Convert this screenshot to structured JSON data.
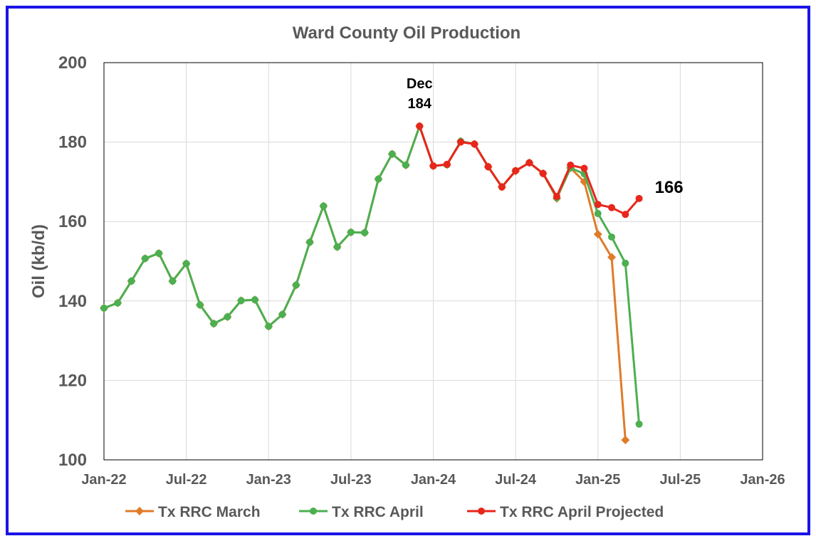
{
  "chart_data": {
    "type": "line",
    "title": "Ward County Oil Production",
    "xlabel": "",
    "ylabel": "Oil (kb/d)",
    "ylim": [
      100,
      200
    ],
    "yticks": [
      100,
      120,
      140,
      160,
      180,
      200
    ],
    "xlim": [
      "2022-01",
      "2026-01"
    ],
    "xticks": [
      "Jan-22",
      "Jul-22",
      "Jan-23",
      "Jul-23",
      "Jan-24",
      "Jul-24",
      "Jan-25",
      "Jul-25",
      "Jan-26"
    ],
    "grid": true,
    "legend_position": "bottom",
    "series": [
      {
        "name": "Tx RRC March",
        "color": "#e07b28",
        "marker": "diamond",
        "x": [
          "2022-01",
          "2022-02",
          "2022-03",
          "2022-04",
          "2022-05",
          "2022-06",
          "2022-07",
          "2022-08",
          "2022-09",
          "2022-10",
          "2022-11",
          "2022-12",
          "2023-01",
          "2023-02",
          "2023-03",
          "2023-04",
          "2023-05",
          "2023-06",
          "2023-07",
          "2023-08",
          "2023-09",
          "2023-10",
          "2023-11",
          "2023-12",
          "2024-01",
          "2024-02",
          "2024-03",
          "2024-04",
          "2024-05",
          "2024-06",
          "2024-07",
          "2024-08",
          "2024-09",
          "2024-10",
          "2024-11",
          "2024-12",
          "2025-01",
          "2025-02",
          "2025-03"
        ],
        "values": [
          138.2,
          139.5,
          145,
          150.7,
          152,
          145,
          149.4,
          139,
          134.3,
          136,
          140.1,
          140.3,
          133.6,
          136.6,
          144,
          154.8,
          163.9,
          153.6,
          157.3,
          157.2,
          170.7,
          177,
          174.2,
          184,
          174,
          174.3,
          180.2,
          179.5,
          173.8,
          168.7,
          172.7,
          174.8,
          172.1,
          165.8,
          173.5,
          170,
          156.8,
          151,
          105
        ]
      },
      {
        "name": "Tx RRC April",
        "color": "#4caf50",
        "marker": "circle",
        "x": [
          "2022-01",
          "2022-02",
          "2022-03",
          "2022-04",
          "2022-05",
          "2022-06",
          "2022-07",
          "2022-08",
          "2022-09",
          "2022-10",
          "2022-11",
          "2022-12",
          "2023-01",
          "2023-02",
          "2023-03",
          "2023-04",
          "2023-05",
          "2023-06",
          "2023-07",
          "2023-08",
          "2023-09",
          "2023-10",
          "2023-11",
          "2023-12",
          "2024-01",
          "2024-02",
          "2024-03",
          "2024-04",
          "2024-05",
          "2024-06",
          "2024-07",
          "2024-08",
          "2024-09",
          "2024-10",
          "2024-11",
          "2024-12",
          "2025-01",
          "2025-02",
          "2025-03",
          "2025-04"
        ],
        "values": [
          138.2,
          139.5,
          145,
          150.7,
          152,
          145,
          149.4,
          139,
          134.3,
          136,
          140.1,
          140.3,
          133.6,
          136.6,
          144,
          154.8,
          163.9,
          153.6,
          157.3,
          157.2,
          170.7,
          177,
          174.2,
          184,
          174,
          174.3,
          180.2,
          179.5,
          173.8,
          168.7,
          172.8,
          174.8,
          172.1,
          166,
          173.5,
          172,
          162,
          156.1,
          149.5,
          109
        ]
      },
      {
        "name": "Tx RRC April  Projected",
        "color": "#e8261c",
        "marker": "circle",
        "x": [
          "2023-12",
          "2024-01",
          "2024-02",
          "2024-03",
          "2024-04",
          "2024-05",
          "2024-06",
          "2024-07",
          "2024-08",
          "2024-09",
          "2024-10",
          "2024-11",
          "2024-12",
          "2025-01",
          "2025-02",
          "2025-03",
          "2025-04"
        ],
        "values": [
          184,
          174,
          174.4,
          180,
          179.5,
          173.8,
          168.7,
          172.8,
          174.8,
          172.1,
          166.3,
          174.2,
          173.4,
          164.3,
          163.5,
          161.8,
          165.8
        ]
      }
    ],
    "annotations": [
      {
        "text": "Dec",
        "x": "2023-12",
        "y": 184
      },
      {
        "text": "184",
        "x": "2023-12",
        "y": 184
      },
      {
        "text": "166",
        "x": "2025-04",
        "y": 165.8
      }
    ]
  }
}
